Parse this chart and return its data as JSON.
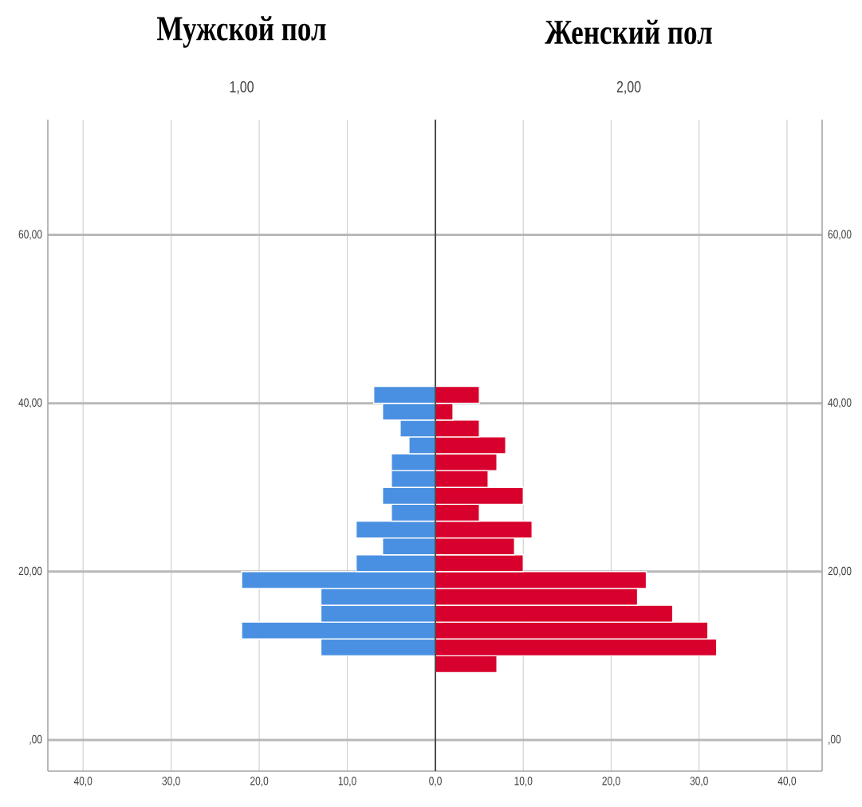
{
  "chart_data": [
    {
      "type": "histogram",
      "orientation": "horizontal",
      "title": "Мужской пол",
      "subtitle": "1,00",
      "color": "#4a90e2",
      "bins": [
        8,
        10,
        12,
        14,
        16,
        18,
        20,
        22,
        24,
        26,
        28,
        30,
        32,
        34,
        36,
        38,
        40,
        42
      ],
      "values": [
        0,
        13,
        22,
        13,
        13,
        22,
        9,
        6,
        9,
        5,
        6,
        5,
        5,
        3,
        4,
        6,
        7
      ],
      "xlim": [
        44,
        0
      ],
      "xticks": [
        {
          "value": 40,
          "label": "40,0"
        },
        {
          "value": 30,
          "label": "30,0"
        },
        {
          "value": 20,
          "label": "20,0"
        },
        {
          "value": 10,
          "label": "10,0"
        }
      ],
      "ylim": [
        -3.7,
        73.7
      ],
      "yticks": [
        {
          "value": 0,
          "label": ",00"
        },
        {
          "value": 20,
          "label": "20,00"
        },
        {
          "value": 40,
          "label": "40,00"
        },
        {
          "value": 60,
          "label": "60,00"
        }
      ],
      "grid": true
    },
    {
      "type": "histogram",
      "orientation": "horizontal",
      "title": "Женский пол",
      "subtitle": "2,00",
      "color": "#d8002c",
      "bins": [
        8,
        10,
        12,
        14,
        16,
        18,
        20,
        22,
        24,
        26,
        28,
        30,
        32,
        34,
        36,
        38,
        40,
        42
      ],
      "values": [
        7,
        32,
        31,
        27,
        23,
        24,
        10,
        9,
        11,
        5,
        10,
        6,
        7,
        8,
        5,
        2,
        5
      ],
      "xlim": [
        0,
        44
      ],
      "xticks": [
        {
          "value": 0,
          "label": "0,0"
        },
        {
          "value": 10,
          "label": "10,0"
        },
        {
          "value": 20,
          "label": "20,0"
        },
        {
          "value": 30,
          "label": "30,0"
        },
        {
          "value": 40,
          "label": "40,0"
        }
      ],
      "ylim": [
        -3.7,
        73.7
      ],
      "yticks": [
        {
          "value": 0,
          "label": ",00"
        },
        {
          "value": 20,
          "label": "20,00"
        },
        {
          "value": 40,
          "label": "40,00"
        },
        {
          "value": 60,
          "label": "60,00"
        }
      ],
      "grid": true
    }
  ]
}
